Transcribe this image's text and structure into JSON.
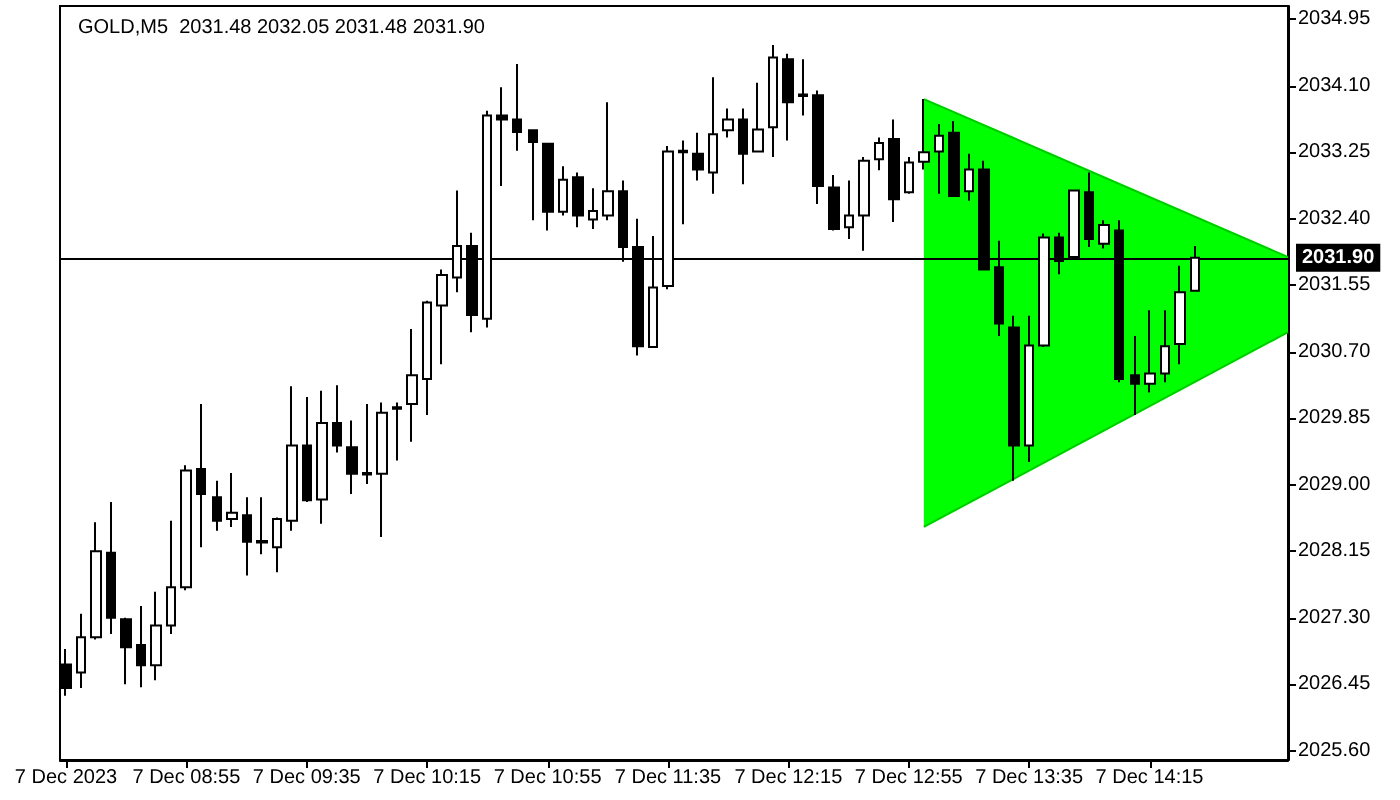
{
  "chart_data": {
    "type": "candlestick",
    "title": "GOLD,M5  2031.48 2032.05 2031.48 2031.90",
    "x": [
      "2023-12-07T08:15",
      "2023-12-07T08:20",
      "2023-12-07T08:25",
      "2023-12-07T08:30",
      "2023-12-07T08:35",
      "2023-12-07T08:40",
      "2023-12-07T08:45",
      "2023-12-07T08:50",
      "2023-12-07T08:55",
      "2023-12-07T09:00",
      "2023-12-07T09:05",
      "2023-12-07T09:10",
      "2023-12-07T09:15",
      "2023-12-07T09:20",
      "2023-12-07T09:25",
      "2023-12-07T09:30",
      "2023-12-07T09:35",
      "2023-12-07T09:40",
      "2023-12-07T09:45",
      "2023-12-07T09:50",
      "2023-12-07T09:55",
      "2023-12-07T10:00",
      "2023-12-07T10:05",
      "2023-12-07T10:10",
      "2023-12-07T10:15",
      "2023-12-07T10:20",
      "2023-12-07T10:25",
      "2023-12-07T10:30",
      "2023-12-07T10:35",
      "2023-12-07T10:40",
      "2023-12-07T10:45",
      "2023-12-07T10:50",
      "2023-12-07T10:55",
      "2023-12-07T11:00",
      "2023-12-07T11:05",
      "2023-12-07T11:10",
      "2023-12-07T11:15",
      "2023-12-07T11:20",
      "2023-12-07T11:25",
      "2023-12-07T11:30",
      "2023-12-07T11:35",
      "2023-12-07T11:40",
      "2023-12-07T11:45",
      "2023-12-07T11:50",
      "2023-12-07T11:55",
      "2023-12-07T12:00",
      "2023-12-07T12:05",
      "2023-12-07T12:10",
      "2023-12-07T12:15",
      "2023-12-07T12:20",
      "2023-12-07T12:25",
      "2023-12-07T12:30",
      "2023-12-07T12:35",
      "2023-12-07T12:40",
      "2023-12-07T12:45",
      "2023-12-07T12:50",
      "2023-12-07T12:55",
      "2023-12-07T13:00",
      "2023-12-07T13:05",
      "2023-12-07T13:10",
      "2023-12-07T13:15",
      "2023-12-07T13:20",
      "2023-12-07T13:25",
      "2023-12-07T13:30",
      "2023-12-07T13:35",
      "2023-12-07T13:40",
      "2023-12-07T13:45",
      "2023-12-07T13:50",
      "2023-12-07T13:55",
      "2023-12-07T14:00",
      "2023-12-07T14:05",
      "2023-12-07T14:10",
      "2023-12-07T14:15",
      "2023-12-07T14:20",
      "2023-12-07T14:25",
      "2023-12-07T14:30"
    ],
    "ohlc": [
      [
        2026.7,
        2026.9,
        2026.3,
        2026.4
      ],
      [
        2026.6,
        2027.35,
        2026.4,
        2027.05
      ],
      [
        2027.05,
        2028.52,
        2027.02,
        2028.15
      ],
      [
        2028.13,
        2028.78,
        2027.09,
        2027.3
      ],
      [
        2027.28,
        2027.3,
        2026.45,
        2026.92
      ],
      [
        2026.95,
        2027.45,
        2026.41,
        2026.69
      ],
      [
        2026.69,
        2027.63,
        2026.5,
        2027.2
      ],
      [
        2027.2,
        2028.54,
        2027.09,
        2027.69
      ],
      [
        2027.69,
        2029.25,
        2027.65,
        2029.18
      ],
      [
        2029.2,
        2030.03,
        2028.2,
        2028.88
      ],
      [
        2028.84,
        2029.05,
        2028.41,
        2028.54
      ],
      [
        2028.56,
        2029.15,
        2028.46,
        2028.64
      ],
      [
        2028.61,
        2028.84,
        2027.84,
        2028.27
      ],
      [
        2028.28,
        2028.84,
        2028.11,
        2028.26
      ],
      [
        2028.2,
        2028.58,
        2027.88,
        2028.56
      ],
      [
        2028.54,
        2030.26,
        2028.41,
        2029.5
      ],
      [
        2029.5,
        2030.12,
        2028.78,
        2028.8
      ],
      [
        2028.81,
        2030.2,
        2028.5,
        2029.79
      ],
      [
        2029.79,
        2030.27,
        2029.41,
        2029.5
      ],
      [
        2029.48,
        2029.82,
        2028.88,
        2029.14
      ],
      [
        2029.15,
        2030.03,
        2029.01,
        2029.13
      ],
      [
        2029.14,
        2030.05,
        2028.33,
        2029.92
      ],
      [
        2029.97,
        2030.05,
        2029.31,
        2029.99
      ],
      [
        2030.03,
        2030.99,
        2029.55,
        2030.4
      ],
      [
        2030.35,
        2031.35,
        2029.89,
        2031.33
      ],
      [
        2031.29,
        2031.75,
        2030.54,
        2031.68
      ],
      [
        2031.65,
        2032.76,
        2031.46,
        2032.05
      ],
      [
        2032.05,
        2032.22,
        2030.95,
        2031.17
      ],
      [
        2031.12,
        2033.78,
        2031.01,
        2033.72
      ],
      [
        2033.72,
        2034.08,
        2032.82,
        2033.67
      ],
      [
        2033.67,
        2034.38,
        2033.27,
        2033.51
      ],
      [
        2033.53,
        2033.53,
        2032.38,
        2033.38
      ],
      [
        2033.36,
        2033.37,
        2032.25,
        2032.49
      ],
      [
        2032.49,
        2033.07,
        2032.44,
        2032.9
      ],
      [
        2032.93,
        2032.99,
        2032.29,
        2032.44
      ],
      [
        2032.39,
        2032.79,
        2032.27,
        2032.5
      ],
      [
        2032.44,
        2033.89,
        2032.38,
        2032.75
      ],
      [
        2032.75,
        2032.89,
        2031.85,
        2032.04
      ],
      [
        2032.04,
        2032.4,
        2030.65,
        2030.77
      ],
      [
        2030.76,
        2032.18,
        2030.76,
        2031.52
      ],
      [
        2031.54,
        2033.33,
        2031.5,
        2033.26
      ],
      [
        2033.27,
        2033.4,
        2032.33,
        2033.25
      ],
      [
        2033.23,
        2033.5,
        2032.89,
        2033.03
      ],
      [
        2032.99,
        2034.21,
        2032.72,
        2033.48
      ],
      [
        2033.53,
        2033.81,
        2033.44,
        2033.67
      ],
      [
        2033.67,
        2033.81,
        2032.84,
        2033.23
      ],
      [
        2033.26,
        2034.14,
        2033.26,
        2033.54
      ],
      [
        2033.57,
        2034.62,
        2033.19,
        2034.46
      ],
      [
        2034.44,
        2034.51,
        2033.4,
        2033.89
      ],
      [
        2033.99,
        2034.44,
        2033.72,
        2033.97
      ],
      [
        2033.98,
        2034.04,
        2032.59,
        2032.82
      ],
      [
        2032.8,
        2032.96,
        2032.25,
        2032.27
      ],
      [
        2032.29,
        2032.89,
        2032.14,
        2032.44
      ],
      [
        2032.44,
        2033.19,
        2031.99,
        2033.14
      ],
      [
        2033.16,
        2033.44,
        2033.02,
        2033.37
      ],
      [
        2033.42,
        2033.67,
        2032.36,
        2032.65
      ],
      [
        2032.74,
        2033.19,
        2032.72,
        2033.12
      ],
      [
        2033.13,
        2033.93,
        2033.03,
        2033.25
      ],
      [
        2033.26,
        2033.61,
        2032.72,
        2033.46
      ],
      [
        2033.5,
        2033.65,
        2032.69,
        2032.69
      ],
      [
        2032.75,
        2033.23,
        2032.63,
        2033.03
      ],
      [
        2033.03,
        2033.14,
        2031.75,
        2031.75
      ],
      [
        2031.78,
        2032.12,
        2030.9,
        2031.06
      ],
      [
        2031.01,
        2031.16,
        2029.05,
        2029.5
      ],
      [
        2029.5,
        2031.16,
        2029.29,
        2030.78
      ],
      [
        2030.78,
        2032.21,
        2030.76,
        2032.16
      ],
      [
        2032.16,
        2032.22,
        2031.69,
        2031.86
      ],
      [
        2031.91,
        2032.76,
        2031.91,
        2032.76
      ],
      [
        2032.74,
        2032.99,
        2032.04,
        2032.14
      ],
      [
        2032.08,
        2032.38,
        2032.02,
        2032.32
      ],
      [
        2032.25,
        2032.38,
        2030.31,
        2030.35
      ],
      [
        2030.4,
        2030.9,
        2029.89,
        2030.29
      ],
      [
        2030.29,
        2031.23,
        2030.18,
        2030.42
      ],
      [
        2030.42,
        2031.23,
        2030.31,
        2030.77
      ],
      [
        2030.8,
        2031.8,
        2030.54,
        2031.46
      ],
      [
        2031.48,
        2032.05,
        2031.48,
        2031.9
      ]
    ],
    "series": [
      {
        "type": "line",
        "color": "#00c800",
        "x": [
          "2023-12-07T13:00",
          "2023-12-07T15:01"
        ],
        "values": [
          2033.93,
          2031.91
        ]
      },
      {
        "type": "line",
        "color": "#00c800",
        "x": [
          "2023-12-07T13:00",
          "2023-12-07T15:01"
        ],
        "values": [
          2028.46,
          2030.95
        ]
      }
    ],
    "xlim": [
      "2023-12-07T08:13",
      "2023-12-07T15:01"
    ],
    "xticks": [
      {
        "value": "2023-12-07T08:15",
        "label": "7 Dec 2023"
      },
      {
        "value": "2023-12-07T08:55",
        "label": "7 Dec 08:55"
      },
      {
        "value": "2023-12-07T09:35",
        "label": "7 Dec 09:35"
      },
      {
        "value": "2023-12-07T10:15",
        "label": "7 Dec 10:15"
      },
      {
        "value": "2023-12-07T10:55",
        "label": "7 Dec 10:55"
      },
      {
        "value": "2023-12-07T11:35",
        "label": "7 Dec 11:35"
      },
      {
        "value": "2023-12-07T12:15",
        "label": "7 Dec 12:15"
      },
      {
        "value": "2023-12-07T12:55",
        "label": "7 Dec 12:55"
      },
      {
        "value": "2023-12-07T13:35",
        "label": "7 Dec 13:35"
      },
      {
        "value": "2023-12-07T14:15",
        "label": "7 Dec 14:15"
      }
    ],
    "ylim": [
      2025.48,
      2035.12
    ],
    "yticks": [
      {
        "value": 2025.6,
        "label": "2025.60"
      },
      {
        "value": 2026.45,
        "label": "2026.45"
      },
      {
        "value": 2027.3,
        "label": "2027.30"
      },
      {
        "value": 2028.15,
        "label": "2028.15"
      },
      {
        "value": 2029.0,
        "label": "2029.00"
      },
      {
        "value": 2029.85,
        "label": "2029.85"
      },
      {
        "value": 2030.7,
        "label": "2030.70"
      },
      {
        "value": 2031.55,
        "label": "2031.55"
      },
      {
        "value": 2032.4,
        "label": "2032.40"
      },
      {
        "value": 2033.25,
        "label": "2033.25"
      },
      {
        "value": 2034.1,
        "label": "2034.10"
      },
      {
        "value": 2034.95,
        "label": "2034.95"
      }
    ],
    "ref_lines": [
      {
        "axis": "y",
        "value": 2031.9,
        "label": "2031.90",
        "color": "#000000"
      }
    ],
    "grid": false
  }
}
